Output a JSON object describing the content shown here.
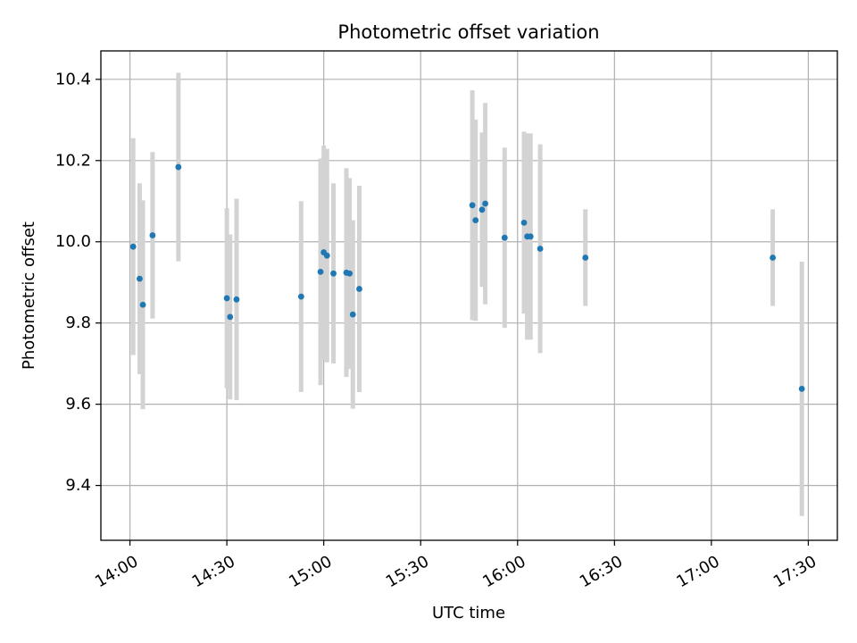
{
  "chart_data": {
    "type": "scatter",
    "title": "Photometric offset variation",
    "xlabel": "UTC time",
    "ylabel": "Photometric offset",
    "xlim": [
      "13:51",
      "17:39"
    ],
    "ylim": [
      9.265,
      10.47
    ],
    "x_ticks": [
      "14:00",
      "14:30",
      "15:00",
      "15:30",
      "16:00",
      "16:30",
      "17:00",
      "17:30"
    ],
    "y_ticks": [
      9.4,
      9.6,
      9.8,
      10.0,
      10.2,
      10.4
    ],
    "y_tick_labels": [
      "9.4",
      "9.6",
      "9.8",
      "10.0",
      "10.2",
      "10.4"
    ],
    "grid": true,
    "point_color": "#1f77b4",
    "errorbar_color": "#d3d3d3",
    "series": [
      {
        "points": [
          {
            "x": "14:01",
            "y": 9.988,
            "err": 0.267
          },
          {
            "x": "14:03",
            "y": 9.909,
            "err": 0.235
          },
          {
            "x": "14:04",
            "y": 9.845,
            "err": 0.257
          },
          {
            "x": "14:07",
            "y": 10.016,
            "err": 0.205
          },
          {
            "x": "14:15",
            "y": 10.184,
            "err": 0.232
          },
          {
            "x": "14:30",
            "y": 9.861,
            "err": 0.222
          },
          {
            "x": "14:31",
            "y": 9.815,
            "err": 0.203
          },
          {
            "x": "14:33",
            "y": 9.858,
            "err": 0.248
          },
          {
            "x": "14:53",
            "y": 9.865,
            "err": 0.235
          },
          {
            "x": "14:59",
            "y": 9.926,
            "err": 0.279
          },
          {
            "x": "15:00",
            "y": 9.974,
            "err": 0.263
          },
          {
            "x": "15:01",
            "y": 9.966,
            "err": 0.263
          },
          {
            "x": "15:03",
            "y": 9.922,
            "err": 0.222
          },
          {
            "x": "15:07",
            "y": 9.924,
            "err": 0.257
          },
          {
            "x": "15:08",
            "y": 9.922,
            "err": 0.235
          },
          {
            "x": "15:09",
            "y": 9.821,
            "err": 0.232
          },
          {
            "x": "15:11",
            "y": 9.884,
            "err": 0.254
          },
          {
            "x": "15:46",
            "y": 10.09,
            "err": 0.283
          },
          {
            "x": "15:47",
            "y": 10.053,
            "err": 0.248
          },
          {
            "x": "15:49",
            "y": 10.079,
            "err": 0.19
          },
          {
            "x": "15:50",
            "y": 10.094,
            "err": 0.248
          },
          {
            "x": "15:56",
            "y": 10.01,
            "err": 0.222
          },
          {
            "x": "16:02",
            "y": 10.047,
            "err": 0.224
          },
          {
            "x": "16:03",
            "y": 10.013,
            "err": 0.254
          },
          {
            "x": "16:04",
            "y": 10.013,
            "err": 0.254
          },
          {
            "x": "16:07",
            "y": 9.983,
            "err": 0.257
          },
          {
            "x": "16:21",
            "y": 9.961,
            "err": 0.119
          },
          {
            "x": "17:19",
            "y": 9.961,
            "err": 0.119
          },
          {
            "x": "17:28",
            "y": 9.638,
            "err": 0.313
          }
        ]
      }
    ]
  }
}
